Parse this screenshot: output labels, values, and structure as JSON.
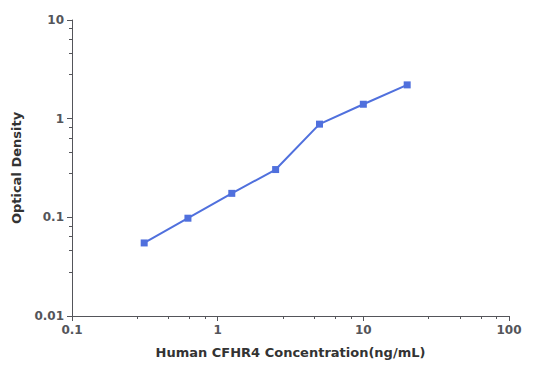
{
  "chart_data": {
    "type": "line",
    "xlabel": "Human CFHR4 Concentration(ng/mL)",
    "ylabel": "Optical Density",
    "x": [
      0.313,
      0.625,
      1.25,
      2.5,
      5.0,
      10.0,
      20.0
    ],
    "values": [
      0.055,
      0.098,
      0.175,
      0.305,
      0.88,
      1.4,
      2.2
    ],
    "marker": "square",
    "log": true,
    "xlim": [
      0.1,
      100
    ],
    "ylim": [
      0.01,
      10
    ],
    "xticks": [
      0.1,
      1,
      10,
      100
    ],
    "yticks": [
      0.01,
      0.1,
      1,
      10
    ],
    "grid": false
  }
}
